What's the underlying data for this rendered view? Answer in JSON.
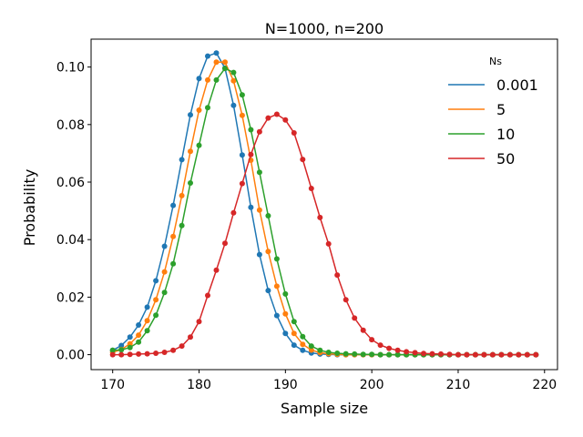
{
  "chart_data": {
    "type": "line",
    "title": "N=1000, n=200",
    "xlabel": "Sample size",
    "ylabel": "Probability",
    "xlim": [
      167.5,
      221.5
    ],
    "ylim": [
      -0.0052,
      0.1097
    ],
    "xticks": [
      170,
      180,
      190,
      200,
      210,
      220
    ],
    "xtick_labels": [
      "170",
      "180",
      "190",
      "200",
      "210",
      "220"
    ],
    "yticks": [
      0.0,
      0.02,
      0.04,
      0.06,
      0.08,
      0.1
    ],
    "ytick_labels": [
      "0.00",
      "0.02",
      "0.04",
      "0.06",
      "0.08",
      "0.10"
    ],
    "grid": false,
    "legend": {
      "title": "Ns",
      "position": "upper-right"
    },
    "markers": "dots at each x",
    "series": [
      {
        "name": "0.001",
        "color": "#1f77b4",
        "x": [
          170,
          171,
          172,
          173,
          174,
          175,
          176,
          177,
          178,
          179,
          180,
          181,
          182,
          183,
          184,
          185,
          186,
          187,
          188,
          189,
          190,
          191,
          192,
          193,
          194,
          195,
          196,
          197,
          198,
          199,
          200,
          201,
          202,
          203,
          204,
          205,
          206,
          207,
          208,
          209,
          210,
          211,
          212,
          213,
          214,
          215,
          216,
          217,
          218,
          219
        ],
        "y": [
          0.0015,
          0.0032,
          0.0061,
          0.0103,
          0.0165,
          0.0257,
          0.0377,
          0.0519,
          0.0678,
          0.0834,
          0.096,
          0.1038,
          0.1049,
          0.0996,
          0.0867,
          0.0694,
          0.0512,
          0.0348,
          0.0223,
          0.0136,
          0.0074,
          0.0033,
          0.0015,
          0.0006,
          0.0002,
          0.0001,
          0,
          0,
          0,
          0,
          0,
          0,
          0,
          0,
          0,
          0,
          0,
          0,
          0,
          0,
          0,
          0,
          0,
          0,
          0,
          0,
          0,
          0,
          0,
          0
        ]
      },
      {
        "name": "5",
        "color": "#ff7f0e",
        "x": [
          170,
          171,
          172,
          173,
          174,
          175,
          176,
          177,
          178,
          179,
          180,
          181,
          182,
          183,
          184,
          185,
          186,
          187,
          188,
          189,
          190,
          191,
          192,
          193,
          194,
          195,
          196,
          197,
          198,
          199,
          200,
          201,
          202,
          203,
          204,
          205,
          206,
          207,
          208,
          209,
          210,
          211,
          212,
          213,
          214,
          215,
          216,
          217,
          218,
          219
        ],
        "y": [
          0.0008,
          0.0018,
          0.0038,
          0.0068,
          0.0118,
          0.0191,
          0.0288,
          0.0411,
          0.0553,
          0.0707,
          0.085,
          0.0955,
          0.1017,
          0.1017,
          0.0952,
          0.0832,
          0.0676,
          0.0503,
          0.0359,
          0.0238,
          0.0142,
          0.0074,
          0.0036,
          0.0016,
          0.0007,
          0.0003,
          0.0001,
          0,
          0,
          0,
          0,
          0,
          0,
          0,
          0,
          0,
          0,
          0,
          0,
          0,
          0,
          0,
          0,
          0,
          0,
          0,
          0,
          0,
          0,
          0
        ]
      },
      {
        "name": "10",
        "color": "#2ca02c",
        "x": [
          170,
          171,
          172,
          173,
          174,
          175,
          176,
          177,
          178,
          179,
          180,
          181,
          182,
          183,
          184,
          185,
          186,
          187,
          188,
          189,
          190,
          191,
          192,
          193,
          194,
          195,
          196,
          197,
          198,
          199,
          200,
          201,
          202,
          203,
          204,
          205,
          206,
          207,
          208,
          209,
          210,
          211,
          212,
          213,
          214,
          215,
          216,
          217,
          218,
          219
        ],
        "y": [
          0.0015,
          0.0017,
          0.0025,
          0.0044,
          0.0083,
          0.0137,
          0.0216,
          0.0316,
          0.0449,
          0.0597,
          0.0728,
          0.0859,
          0.0955,
          0.0995,
          0.0981,
          0.0903,
          0.0782,
          0.0634,
          0.0483,
          0.0333,
          0.0211,
          0.0115,
          0.0063,
          0.003,
          0.0015,
          0.0008,
          0.0005,
          0.0003,
          0.0002,
          0.0001,
          0.0001,
          0,
          0,
          0,
          0,
          0,
          0,
          0,
          0,
          0,
          0,
          0,
          0,
          0,
          0,
          0,
          0,
          0,
          0,
          0
        ]
      },
      {
        "name": "50",
        "color": "#d62728",
        "x": [
          170,
          171,
          172,
          173,
          174,
          175,
          176,
          177,
          178,
          179,
          180,
          181,
          182,
          183,
          184,
          185,
          186,
          187,
          188,
          189,
          190,
          191,
          192,
          193,
          194,
          195,
          196,
          197,
          198,
          199,
          200,
          201,
          202,
          203,
          204,
          205,
          206,
          207,
          208,
          209,
          210,
          211,
          212,
          213,
          214,
          215,
          216,
          217,
          218,
          219
        ],
        "y": [
          0,
          0,
          0.0001,
          0.0002,
          0.0003,
          0.0005,
          0.0008,
          0.0015,
          0.003,
          0.0061,
          0.0115,
          0.0206,
          0.0294,
          0.0387,
          0.0493,
          0.0595,
          0.0696,
          0.0775,
          0.0823,
          0.0836,
          0.0816,
          0.0771,
          0.0679,
          0.0578,
          0.0477,
          0.0385,
          0.0277,
          0.0191,
          0.0127,
          0.0085,
          0.0052,
          0.0033,
          0.0022,
          0.0015,
          0.001,
          0.0007,
          0.0004,
          0.0003,
          0.0002,
          0.0001,
          0,
          0,
          0,
          0,
          0,
          0,
          0,
          0,
          0,
          0
        ]
      }
    ]
  }
}
